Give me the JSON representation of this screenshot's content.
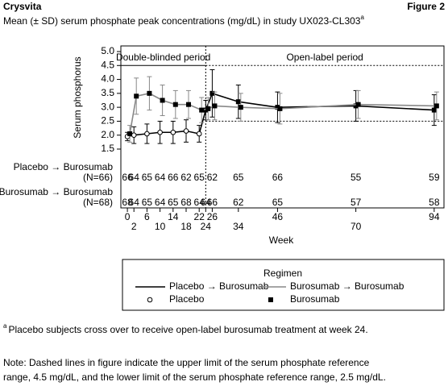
{
  "header": {
    "title": "Crysvita",
    "figure": "Figure 2",
    "subtitle": "Mean (± SD) serum phosphate peak concentrations (mg/dL) in study UX023-CL303",
    "subtitle_note": "a"
  },
  "chart_data": {
    "type": "line",
    "ylabel": "Serum phosphorus",
    "xlabel": "Week",
    "x": [
      0,
      2,
      6,
      10,
      14,
      18,
      22,
      24,
      26,
      34,
      46,
      70,
      94
    ],
    "xlim": [
      -2,
      97
    ],
    "xticks": [
      0,
      2,
      6,
      10,
      14,
      18,
      22,
      24,
      26,
      34,
      46,
      70,
      94
    ],
    "ylim": [
      1.5,
      5.0
    ],
    "yticks": [
      1.5,
      {
        "value": 2,
        "label": "2.0"
      },
      2.5,
      {
        "value": 3,
        "label": "3.0"
      },
      3.5,
      {
        "value": 4,
        "label": "4.0"
      },
      4.5,
      {
        "value": 5,
        "label": "5.0"
      }
    ],
    "reference_lines": [
      4.5,
      2.5
    ],
    "phase_line": 24,
    "annotations": [
      "Double-blinded period",
      "Open-label period"
    ],
    "series": [
      {
        "name": "Placebo → Burosumab",
        "color": "#000000",
        "values": [
          1.95,
          2.0,
          2.05,
          2.1,
          2.1,
          2.15,
          2.05,
          2.9,
          3.5,
          3.2,
          3.0,
          3.05,
          2.9
        ],
        "sd": [
          0.15,
          0.3,
          0.35,
          0.4,
          0.4,
          0.4,
          0.3,
          0.35,
          0.85,
          0.6,
          0.55,
          0.55,
          0.55
        ],
        "markers": [
          "circle",
          "circle",
          "circle",
          "circle",
          "circle",
          "circle",
          "circle",
          "square",
          "square",
          "square",
          "square",
          "square",
          "square"
        ]
      },
      {
        "name": "Burosumab → Burosumab",
        "color": "#888888",
        "values": [
          2.05,
          3.4,
          3.5,
          3.25,
          3.1,
          3.1,
          2.9,
          2.95,
          3.05,
          3.0,
          2.95,
          3.1,
          3.05
        ],
        "sd": [
          0.3,
          0.65,
          0.6,
          0.55,
          0.5,
          0.5,
          0.45,
          0.4,
          0.5,
          0.5,
          0.55,
          0.5,
          0.5
        ],
        "markers": [
          "square",
          "square",
          "square",
          "square",
          "square",
          "square",
          "square",
          "square",
          "square",
          "square",
          "square",
          "square",
          "square"
        ]
      }
    ],
    "legend_title": "Regimen",
    "marker_legend": [
      {
        "name": "Placebo",
        "marker": "circle"
      },
      {
        "name": "Burosumab",
        "marker": "square"
      }
    ],
    "n_rows": [
      {
        "label": "Placebo → Burosumab",
        "n": "(N=66)",
        "values": [
          66,
          64,
          65,
          64,
          66,
          62,
          65,
          null,
          62,
          65,
          66,
          55,
          59
        ]
      },
      {
        "label": "Burosumab → Burosumab",
        "n": "(N=68)",
        "values": [
          68,
          64,
          65,
          64,
          65,
          68,
          64,
          64,
          66,
          62,
          65,
          57,
          58
        ]
      }
    ]
  },
  "footnote": {
    "marker": "a",
    "text": "Placebo subjects cross over to receive open-label burosumab treatment at week 24."
  },
  "note": [
    "Note: Dashed lines in figure indicate the upper limit of the serum phosphate reference",
    "range, 4.5 mg/dL, and the lower limit of the serum phosphate reference range, 2.5 mg/dL."
  ]
}
